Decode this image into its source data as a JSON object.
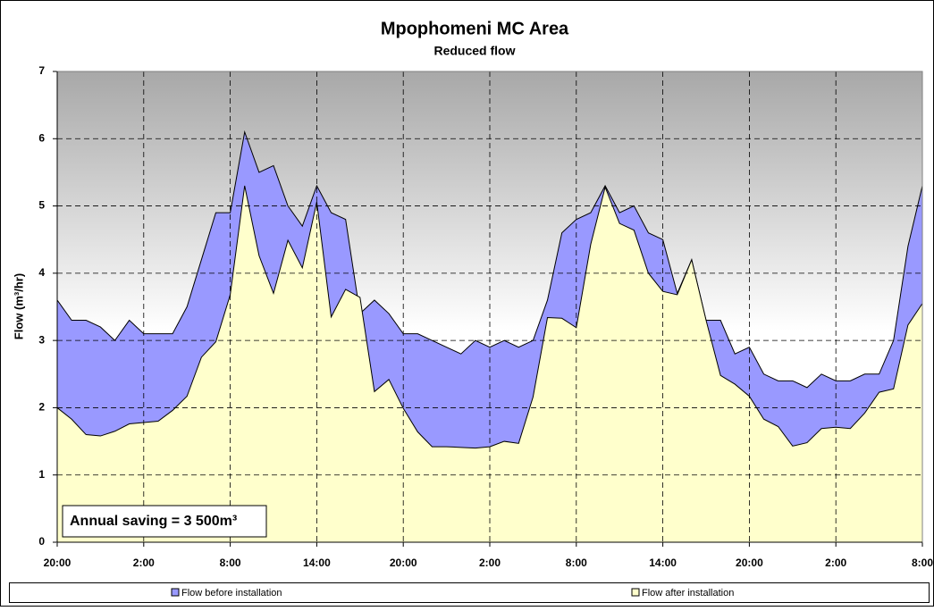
{
  "chart_data": {
    "type": "area",
    "title": "Mpophomeni MC Area",
    "subtitle": "Reduced flow",
    "y_label": "Flow (m³/hr)",
    "annotation": "Annual saving = 3 500m³",
    "categories": [
      "20:00",
      null,
      null,
      null,
      null,
      null,
      "2:00",
      null,
      null,
      null,
      null,
      null,
      "8:00",
      null,
      null,
      null,
      null,
      null,
      "14:00",
      null,
      null,
      null,
      null,
      null,
      "20:00",
      null,
      null,
      null,
      null,
      null,
      "2:00",
      null,
      null,
      null,
      null,
      null,
      "8:00",
      null,
      null,
      null,
      null,
      null,
      "14:00",
      null,
      null,
      null,
      null,
      null,
      "20:00",
      null,
      null,
      null,
      null,
      null,
      "2:00",
      null,
      null,
      null,
      null,
      null,
      "8:00"
    ],
    "series": [
      {
        "name": "Flow before installation",
        "color": "#9999ff",
        "values": [
          3.6,
          3.3,
          3.3,
          3.2,
          3.0,
          3.3,
          3.1,
          3.1,
          3.1,
          3.5,
          4.2,
          4.9,
          4.9,
          6.1,
          5.5,
          5.6,
          5.0,
          4.7,
          5.3,
          4.9,
          4.8,
          3.4,
          3.6,
          3.4,
          3.1,
          3.1,
          3.0,
          2.9,
          2.8,
          3.0,
          2.9,
          3.0,
          2.9,
          3.0,
          3.6,
          4.6,
          4.8,
          4.9,
          5.3,
          4.9,
          5.0,
          4.6,
          4.5,
          3.7,
          4.2,
          3.3,
          3.3,
          2.8,
          2.9,
          2.5,
          2.4,
          2.4,
          2.3,
          2.5,
          2.4,
          2.4,
          2.5,
          2.5,
          3.0,
          4.4,
          5.3
        ]
      },
      {
        "name": "Flow after installation",
        "color": "#ffffcc",
        "values": [
          2.0,
          1.83,
          1.6,
          1.58,
          1.65,
          1.76,
          1.78,
          1.8,
          1.96,
          2.17,
          2.75,
          2.98,
          3.68,
          5.3,
          4.26,
          3.7,
          4.49,
          4.08,
          5.06,
          3.35,
          3.76,
          3.64,
          2.24,
          2.42,
          1.99,
          1.64,
          1.42,
          1.42,
          1.41,
          1.4,
          1.42,
          1.5,
          1.47,
          2.16,
          3.34,
          3.33,
          3.19,
          4.43,
          5.28,
          4.74,
          4.64,
          4.0,
          3.73,
          3.68,
          4.2,
          3.3,
          2.48,
          2.35,
          2.17,
          1.83,
          1.72,
          1.43,
          1.48,
          1.69,
          1.71,
          1.69,
          1.92,
          2.23,
          2.28,
          3.23,
          3.55
        ]
      }
    ],
    "ylim": [
      0,
      7
    ],
    "yticks": [
      0,
      1,
      2,
      3,
      4,
      5,
      6,
      7
    ],
    "grid": true,
    "legend": "bottom"
  }
}
